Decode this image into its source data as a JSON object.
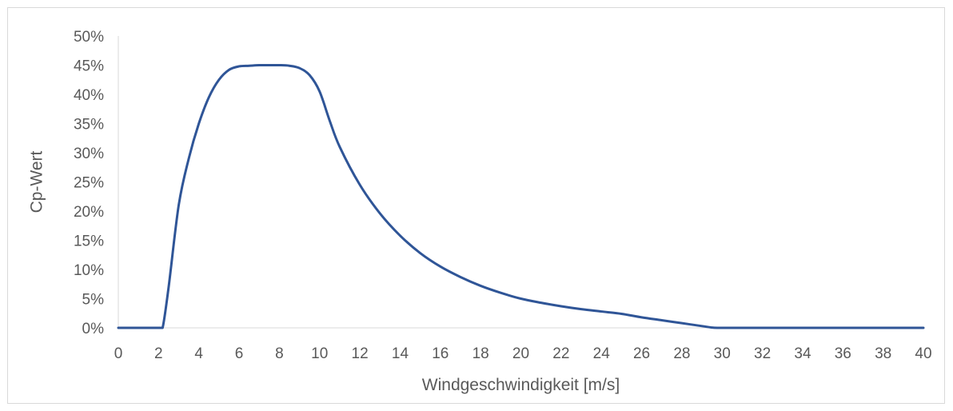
{
  "chart_data": {
    "type": "line",
    "title": "",
    "xlabel": "Windgeschwindigkeit [m/s]",
    "ylabel": "Cp-Wert",
    "xlim": [
      0,
      40
    ],
    "ylim": [
      0,
      0.5
    ],
    "x_ticks": [
      "0",
      "2",
      "4",
      "6",
      "8",
      "10",
      "12",
      "14",
      "16",
      "18",
      "20",
      "22",
      "24",
      "26",
      "28",
      "30",
      "32",
      "34",
      "36",
      "38",
      "40"
    ],
    "y_ticks": [
      "0%",
      "5%",
      "10%",
      "15%",
      "20%",
      "25%",
      "30%",
      "35%",
      "40%",
      "45%",
      "50%"
    ],
    "grid": false,
    "legend": "none",
    "series": [
      {
        "color": "#2f5597",
        "x": [
          0,
          1,
          2,
          2.2,
          2.5,
          3,
          3.5,
          4,
          4.5,
          5,
          5.5,
          6,
          6.5,
          7,
          7.5,
          8,
          8.5,
          9,
          9.5,
          10,
          10.5,
          11,
          12,
          13,
          14,
          15,
          16,
          17,
          18,
          19,
          20,
          21,
          22,
          23,
          24,
          25,
          26,
          27,
          28,
          29,
          29.5,
          30,
          32,
          34,
          36,
          38,
          40
        ],
        "y": [
          0,
          0,
          0,
          0,
          0.07,
          0.21,
          0.29,
          0.35,
          0.395,
          0.425,
          0.442,
          0.448,
          0.449,
          0.45,
          0.45,
          0.45,
          0.449,
          0.445,
          0.433,
          0.405,
          0.355,
          0.31,
          0.245,
          0.196,
          0.158,
          0.128,
          0.105,
          0.087,
          0.072,
          0.06,
          0.05,
          0.043,
          0.037,
          0.032,
          0.028,
          0.024,
          0.018,
          0.013,
          0.008,
          0.003,
          0.0005,
          0,
          0,
          0,
          0,
          0,
          0
        ]
      }
    ]
  }
}
